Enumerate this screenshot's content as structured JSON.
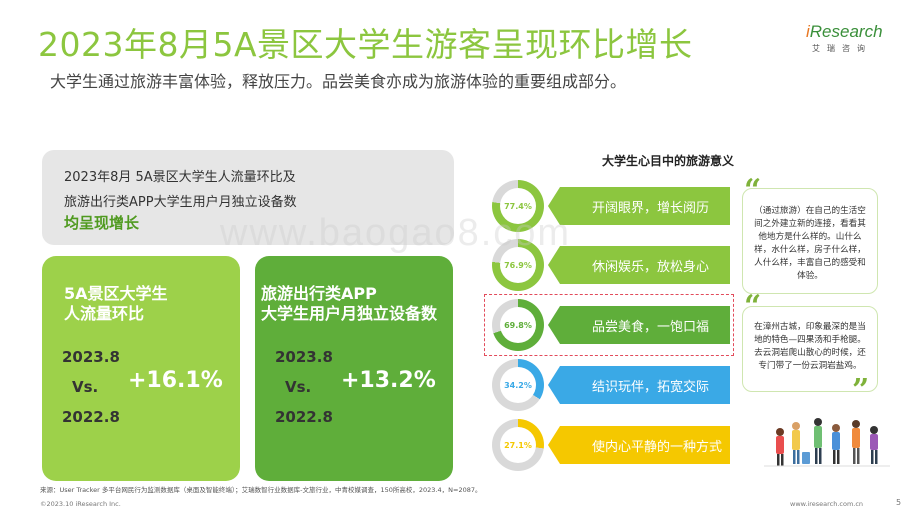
{
  "header": {
    "title": "2023年8月5A景区大学生游客呈现环比增长",
    "subtitle": "大学生通过旅游丰富体验，释放压力。品尝美食亦成为旅游体验的重要组成部分。"
  },
  "logo": {
    "text_i": "i",
    "text_main": "Research",
    "sub": "艾瑞咨询"
  },
  "summary": {
    "line1": "2023年8月 5A景区大学生人流量环比及",
    "line2": "旅游出行类APP大学生用户月独立设备数",
    "line3": "均呈现增长"
  },
  "cards": [
    {
      "title_line1": "5A景区大学生",
      "title_line2": "人流量环比",
      "year1": "2023.8",
      "vs": "Vs.",
      "change": "+16.1%",
      "year2": "2022.8",
      "color": "#9dd14a"
    },
    {
      "title_line1": "旅游出行类APP",
      "title_line2": "大学生用户月独立设备数",
      "year1": "2023.8",
      "vs": "Vs.",
      "change": "+13.2%",
      "year2": "2022.8",
      "color": "#5fae3a"
    }
  ],
  "chart_title": "大学生心目中的旅游意义",
  "meanings": [
    {
      "pct": "77.4%",
      "value": 77.4,
      "label": "开阔眼界，增长阅历",
      "color": "#8cc63f"
    },
    {
      "pct": "76.9%",
      "value": 76.9,
      "label": "休闲娱乐，放松身心",
      "color": "#8cc63f"
    },
    {
      "pct": "69.8%",
      "value": 69.8,
      "label": "品尝美食，一饱口福",
      "color": "#5fae3a"
    },
    {
      "pct": "34.2%",
      "value": 34.2,
      "label": "结识玩伴，拓宽交际",
      "color": "#3aa9e6"
    },
    {
      "pct": "27.1%",
      "value": 27.1,
      "label": "使内心平静的一种方式",
      "color": "#f5c800"
    }
  ],
  "quotes": [
    "（通过旅游）在自己的生活空间之外建立新的连接，看看其他地方是什么样的。山什么样，水什么样，房子什么样，人什么样，丰富自己的感受和体验。",
    "在漳州古城，印象最深的是当地的特色—四果汤和手枪腿。去云洞岩爬山散心的时候，还专门带了一份云洞岩盐鸡。"
  ],
  "footer": {
    "source": "来源：User Tracker 多平台网民行为监测数据库（桌面及智能终端）；艾瑞数智行业数据库-文旅行业，中青校媒调查，150所高校，2023.4，N=2087。",
    "copyright": "©2023.10 iResearch Inc.",
    "website": "www.iresearch.com.cn",
    "page": "5"
  },
  "watermark": "www.baogao8.com"
}
